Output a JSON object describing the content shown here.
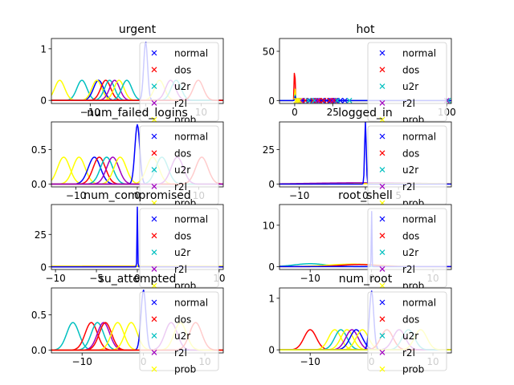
{
  "figure": {
    "legend_entries": [
      {
        "name": "normal",
        "color": "#0000ff"
      },
      {
        "name": "dos",
        "color": "#ff0000"
      },
      {
        "name": "u2r",
        "color": "#00c0c0"
      },
      {
        "name": "r2l",
        "color": "#a000c0"
      },
      {
        "name": "prob",
        "color": "#ffff00"
      }
    ],
    "legend_marker": "x",
    "legend_placement": "right"
  },
  "chart_data": [
    {
      "type": "line",
      "title": "urgent",
      "xlim": [
        -17,
        14
      ],
      "ylim": [
        -0.06,
        1.2
      ],
      "xticks": [
        {
          "v": -10,
          "label": "−10"
        },
        {
          "v": 0,
          "label": "0"
        },
        {
          "v": 10,
          "label": "10"
        }
      ],
      "yticks": [
        {
          "v": 0,
          "label": "0"
        },
        {
          "v": 1,
          "label": "1"
        }
      ],
      "curves": [
        {
          "class": "u2r",
          "color": "#00c0c0",
          "mu": -11.5,
          "sigma": 0.9,
          "amp": 0.39
        },
        {
          "class": "prob",
          "color": "#ffff00",
          "mu": -15.5,
          "sigma": 0.9,
          "amp": 0.39
        },
        {
          "class": "normal",
          "color": "#0000ff",
          "mu": -8.5,
          "sigma": 0.9,
          "amp": 0.39
        },
        {
          "class": "prob",
          "color": "#ffff00",
          "mu": -8.8,
          "sigma": 0.9,
          "amp": 0.39
        },
        {
          "class": "dos",
          "color": "#ff0000",
          "mu": -7.2,
          "sigma": 0.9,
          "amp": 0.39
        },
        {
          "class": "u2r",
          "color": "#00c0c0",
          "mu": -6.5,
          "sigma": 0.9,
          "amp": 0.39
        },
        {
          "class": "r2l",
          "color": "#a000c0",
          "mu": -5.6,
          "sigma": 0.9,
          "amp": 0.39
        },
        {
          "class": "prob",
          "color": "#ffff00",
          "mu": -4.8,
          "sigma": 0.9,
          "amp": 0.39
        },
        {
          "class": "u2r",
          "color": "#00c0c0",
          "mu": -3.4,
          "sigma": 0.9,
          "amp": 0.39
        },
        {
          "class": "normal",
          "color": "#0000ff",
          "mu": 0.0,
          "sigma": 0.35,
          "amp": 1.14
        },
        {
          "class": "prob",
          "color": "#ffff00",
          "mu": 2.5,
          "sigma": 0.9,
          "amp": 0.39
        },
        {
          "class": "r2l",
          "color": "#a000c0",
          "mu": 4.5,
          "sigma": 0.9,
          "amp": 0.39
        },
        {
          "class": "u2r",
          "color": "#00c0c0",
          "mu": 5.5,
          "sigma": 0.9,
          "amp": 0.39
        },
        {
          "class": "dos",
          "color": "#ff0000",
          "mu": 9.5,
          "sigma": 0.9,
          "amp": 0.39
        }
      ],
      "markers": []
    },
    {
      "type": "line",
      "title": "hot",
      "xlim": [
        -10,
        103
      ],
      "ylim": [
        -3,
        63
      ],
      "xticks": [
        {
          "v": 0,
          "label": "0"
        },
        {
          "v": 25,
          "label": "25"
        },
        {
          "v": 100,
          "label": "100"
        }
      ],
      "yticks": [
        {
          "v": 0,
          "label": "0"
        },
        {
          "v": 50,
          "label": "50"
        }
      ],
      "curves": [
        {
          "class": "dos",
          "color": "#ff0000",
          "mu": 0.0,
          "sigma": 0.2,
          "amp": 57
        },
        {
          "class": "prob",
          "color": "#ffff00",
          "mu": 0.2,
          "sigma": 0.25,
          "amp": 12
        },
        {
          "class": "u2r",
          "color": "#00c0c0",
          "mu": 0.4,
          "sigma": 0.3,
          "amp": 6
        },
        {
          "class": "normal",
          "color": "#0000ff",
          "mu": 0.3,
          "sigma": 0.3,
          "amp": 4
        }
      ],
      "markers": [
        {
          "class": "normal",
          "color": "#0000ff",
          "x": [
            5,
            10,
            14,
            18,
            21,
            24,
            27,
            30,
            33
          ],
          "y": 0
        },
        {
          "class": "dos",
          "color": "#ff0000",
          "x": [
            3,
            7,
            12,
            16,
            19,
            23,
            26
          ],
          "y": 0
        },
        {
          "class": "u2r",
          "color": "#00c0c0",
          "x": [
            9,
            13,
            28,
            36,
            101
          ],
          "y": 0
        },
        {
          "class": "r2l",
          "color": "#a000c0",
          "x": [
            2,
            4,
            15,
            25,
            100
          ],
          "y": 0
        },
        {
          "class": "prob",
          "color": "#ffff00",
          "x": [
            1,
            2,
            3
          ],
          "y": 0
        }
      ]
    },
    {
      "type": "line",
      "title": "num_failed_logins",
      "xlim": [
        -14,
        14
      ],
      "ylim": [
        -0.04,
        0.9
      ],
      "xticks": [
        {
          "v": -10,
          "label": "−10"
        },
        {
          "v": 0,
          "label": "0"
        },
        {
          "v": 10,
          "label": "10"
        }
      ],
      "yticks": [
        {
          "v": 0,
          "label": "0.0"
        },
        {
          "v": 0.5,
          "label": "0.5"
        }
      ],
      "curves": [
        {
          "class": "prob",
          "color": "#ffff00",
          "mu": -12.0,
          "sigma": 1.0,
          "amp": 0.39
        },
        {
          "class": "prob",
          "color": "#ffff00",
          "mu": -9.5,
          "sigma": 1.0,
          "amp": 0.39
        },
        {
          "class": "normal",
          "color": "#0000ff",
          "mu": -7.0,
          "sigma": 1.0,
          "amp": 0.39
        },
        {
          "class": "dos",
          "color": "#ff0000",
          "mu": -6.2,
          "sigma": 1.0,
          "amp": 0.39
        },
        {
          "class": "u2r",
          "color": "#00c0c0",
          "mu": -5.0,
          "sigma": 1.0,
          "amp": 0.39
        },
        {
          "class": "r2l",
          "color": "#a000c0",
          "mu": -4.0,
          "sigma": 1.0,
          "amp": 0.39
        },
        {
          "class": "prob",
          "color": "#ffff00",
          "mu": -2.8,
          "sigma": 1.0,
          "amp": 0.39
        },
        {
          "class": "normal",
          "color": "#0000ff",
          "mu": 0.0,
          "sigma": 0.4,
          "amp": 0.86
        },
        {
          "class": "prob",
          "color": "#ffff00",
          "mu": 2.5,
          "sigma": 1.0,
          "amp": 0.39
        },
        {
          "class": "u2r",
          "color": "#00c0c0",
          "mu": 4.0,
          "sigma": 1.0,
          "amp": 0.39
        },
        {
          "class": "dos",
          "color": "#ff0000",
          "mu": 10.5,
          "sigma": 1.0,
          "amp": 0.39
        },
        {
          "class": "r2l",
          "color": "#a000c0",
          "mu": 6.5,
          "sigma": 1.0,
          "amp": 0.39
        }
      ],
      "markers": []
    },
    {
      "type": "line",
      "title": "logged_in",
      "xlim": [
        -13,
        13
      ],
      "ylim": [
        -2,
        45
      ],
      "xticks": [
        {
          "v": -10,
          "label": "−10"
        },
        {
          "v": 0,
          "label": "0"
        },
        {
          "v": 5,
          "label": "5"
        }
      ],
      "yticks": [
        {
          "v": 0,
          "label": "0"
        },
        {
          "v": 25,
          "label": "25"
        }
      ],
      "curves": [
        {
          "class": "r2l",
          "color": "#a000c0",
          "mu": 0.0,
          "sigma": 8.0,
          "amp": 1.0
        },
        {
          "class": "dos",
          "color": "#ff0000",
          "mu": 4.0,
          "sigma": 6.0,
          "amp": 0.5
        },
        {
          "class": "prob",
          "color": "#ffff00",
          "mu": 6.0,
          "sigma": 6.0,
          "amp": 0.5
        },
        {
          "class": "normal",
          "color": "#0000ff",
          "mu": 0.0,
          "sigma": 0.12,
          "amp": 45
        }
      ],
      "markers": []
    },
    {
      "type": "line",
      "title": "num_compromised",
      "xlim": [
        -10.5,
        10.5
      ],
      "ylim": [
        -2,
        48
      ],
      "xticks": [
        {
          "v": -10,
          "label": "−10"
        },
        {
          "v": -5,
          "label": "−5"
        },
        {
          "v": 0,
          "label": "0"
        },
        {
          "v": 10,
          "label": "10"
        }
      ],
      "yticks": [
        {
          "v": 0,
          "label": "0"
        },
        {
          "v": 25,
          "label": "25"
        }
      ],
      "curves": [
        {
          "class": "dos",
          "color": "#ff0000",
          "mu": -2.0,
          "sigma": 20.0,
          "amp": 0.6
        },
        {
          "class": "u2r",
          "color": "#00c0c0",
          "mu": 2.0,
          "sigma": 20.0,
          "amp": 0.3
        },
        {
          "class": "prob",
          "color": "#ffff00",
          "mu": 0.0,
          "sigma": 20.0,
          "amp": 0.5
        },
        {
          "class": "normal",
          "color": "#0000ff",
          "mu": 0.0,
          "sigma": 0.04,
          "amp": 46
        }
      ],
      "markers": []
    },
    {
      "type": "line",
      "title": "root_shell",
      "xlim": [
        -15,
        13
      ],
      "ylim": [
        -0.7,
        15
      ],
      "xticks": [
        {
          "v": -10,
          "label": "−10"
        },
        {
          "v": 0,
          "label": "0"
        },
        {
          "v": 10,
          "label": "10"
        }
      ],
      "yticks": [
        {
          "v": 0,
          "label": "0"
        },
        {
          "v": 10,
          "label": "10"
        }
      ],
      "curves": [
        {
          "class": "u2r",
          "color": "#00c0c0",
          "mu": -10.0,
          "sigma": 2.5,
          "amp": 0.7
        },
        {
          "class": "prob",
          "color": "#ffff00",
          "mu": -3.0,
          "sigma": 4.0,
          "amp": 0.6
        },
        {
          "class": "dos",
          "color": "#ff0000",
          "mu": -2.0,
          "sigma": 3.0,
          "amp": 0.5
        },
        {
          "class": "normal",
          "color": "#0000ff",
          "mu": 0.0,
          "sigma": 0.05,
          "amp": 14.2
        }
      ],
      "markers": []
    },
    {
      "type": "line",
      "title": "su_attempted",
      "xlim": [
        -15,
        13
      ],
      "ylim": [
        -0.04,
        0.88
      ],
      "xticks": [
        {
          "v": -10,
          "label": "−10"
        },
        {
          "v": 0,
          "label": "0"
        },
        {
          "v": 10,
          "label": "10"
        }
      ],
      "yticks": [
        {
          "v": 0,
          "label": "0.0"
        },
        {
          "v": 0.5,
          "label": "0.5"
        }
      ],
      "curves": [
        {
          "class": "u2r",
          "color": "#00c0c0",
          "mu": -11.5,
          "sigma": 1.0,
          "amp": 0.39
        },
        {
          "class": "dos",
          "color": "#ff0000",
          "mu": -8.5,
          "sigma": 1.0,
          "amp": 0.39
        },
        {
          "class": "u2r",
          "color": "#00c0c0",
          "mu": -7.5,
          "sigma": 1.0,
          "amp": 0.39
        },
        {
          "class": "r2l",
          "color": "#a000c0",
          "mu": -6.5,
          "sigma": 1.0,
          "amp": 0.39
        },
        {
          "class": "dos",
          "color": "#ff0000",
          "mu": -6.2,
          "sigma": 1.0,
          "amp": 0.39
        },
        {
          "class": "prob",
          "color": "#ffff00",
          "mu": -4.2,
          "sigma": 1.0,
          "amp": 0.39
        },
        {
          "class": "prob",
          "color": "#ffff00",
          "mu": -2.0,
          "sigma": 1.0,
          "amp": 0.39
        },
        {
          "class": "normal",
          "color": "#0000ff",
          "mu": 0.0,
          "sigma": 0.4,
          "amp": 0.85
        },
        {
          "class": "r2l",
          "color": "#a000c0",
          "mu": 4.5,
          "sigma": 1.0,
          "amp": 0.39
        },
        {
          "class": "prob",
          "color": "#ffff00",
          "mu": 6.0,
          "sigma": 1.0,
          "amp": 0.39
        },
        {
          "class": "dos",
          "color": "#ff0000",
          "mu": 8.5,
          "sigma": 1.0,
          "amp": 0.39
        }
      ],
      "markers": []
    },
    {
      "type": "line",
      "title": "num_root",
      "xlim": [
        -15,
        13
      ],
      "ylim": [
        -0.06,
        1.2
      ],
      "xticks": [
        {
          "v": -10,
          "label": "−10"
        },
        {
          "v": 0,
          "label": "0"
        },
        {
          "v": 10,
          "label": "10"
        }
      ],
      "yticks": [
        {
          "v": 0,
          "label": "0"
        },
        {
          "v": 1,
          "label": "1"
        }
      ],
      "curves": [
        {
          "class": "dos",
          "color": "#ff0000",
          "mu": -10.0,
          "sigma": 1.0,
          "amp": 0.39
        },
        {
          "class": "prob",
          "color": "#ffff00",
          "mu": -6.0,
          "sigma": 1.0,
          "amp": 0.39
        },
        {
          "class": "u2r",
          "color": "#00c0c0",
          "mu": -5.0,
          "sigma": 1.0,
          "amp": 0.39
        },
        {
          "class": "prob",
          "color": "#ffff00",
          "mu": -4.0,
          "sigma": 1.0,
          "amp": 0.39
        },
        {
          "class": "r2l",
          "color": "#a000c0",
          "mu": -3.2,
          "sigma": 1.0,
          "amp": 0.39
        },
        {
          "class": "normal",
          "color": "#0000ff",
          "mu": -2.5,
          "sigma": 1.0,
          "amp": 0.39
        },
        {
          "class": "prob",
          "color": "#ffff00",
          "mu": -1.5,
          "sigma": 1.0,
          "amp": 0.39
        },
        {
          "class": "normal",
          "color": "#0000ff",
          "mu": 0.0,
          "sigma": 0.35,
          "amp": 1.14
        },
        {
          "class": "dos",
          "color": "#ff0000",
          "mu": 2.5,
          "sigma": 1.0,
          "amp": 0.39
        },
        {
          "class": "r2l",
          "color": "#a000c0",
          "mu": 4.5,
          "sigma": 1.0,
          "amp": 0.39
        },
        {
          "class": "u2r",
          "color": "#00c0c0",
          "mu": 6.0,
          "sigma": 1.0,
          "amp": 0.39
        },
        {
          "class": "prob",
          "color": "#ffff00",
          "mu": 8.0,
          "sigma": 1.0,
          "amp": 0.39
        }
      ],
      "markers": []
    }
  ]
}
